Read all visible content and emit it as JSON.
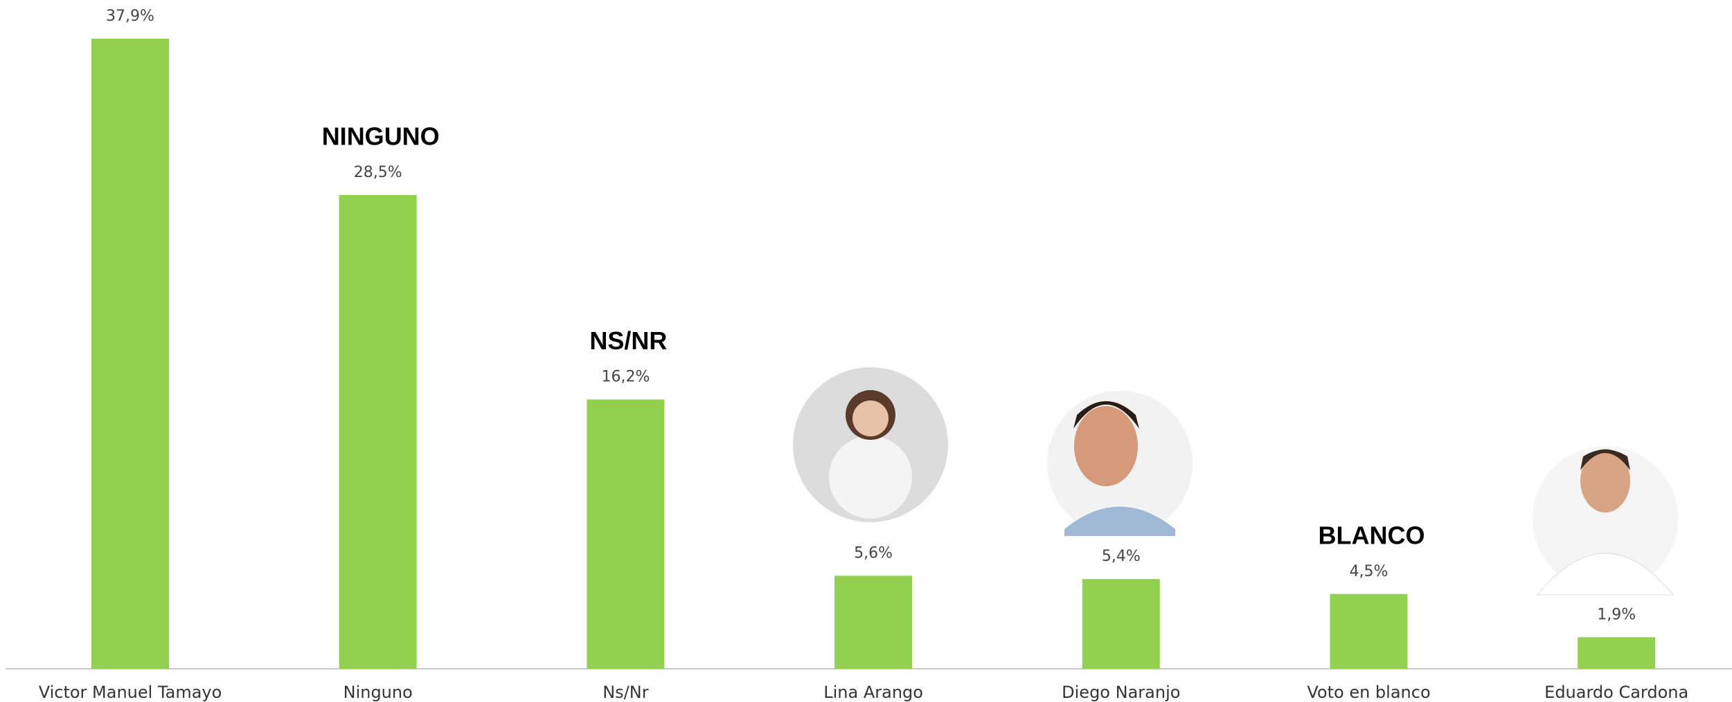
{
  "chart_data": {
    "type": "bar",
    "categories": [
      "Victor Manuel Tamayo",
      "Ninguno",
      "Ns/Nr",
      "Lina Arango",
      "Diego Naranjo",
      "Voto en blanco",
      "Eduardo Cardona"
    ],
    "values": [
      37.9,
      28.5,
      16.2,
      5.6,
      5.4,
      4.5,
      1.9
    ],
    "value_labels": [
      "37,9%",
      "28,5%",
      "16,2%",
      "5,6%",
      "5,4%",
      "4,5%",
      "1,9%"
    ],
    "annotations": [
      null,
      "NINGUNO",
      "NS/NR",
      null,
      null,
      "BLANCO",
      null
    ],
    "color": "#92d050"
  }
}
